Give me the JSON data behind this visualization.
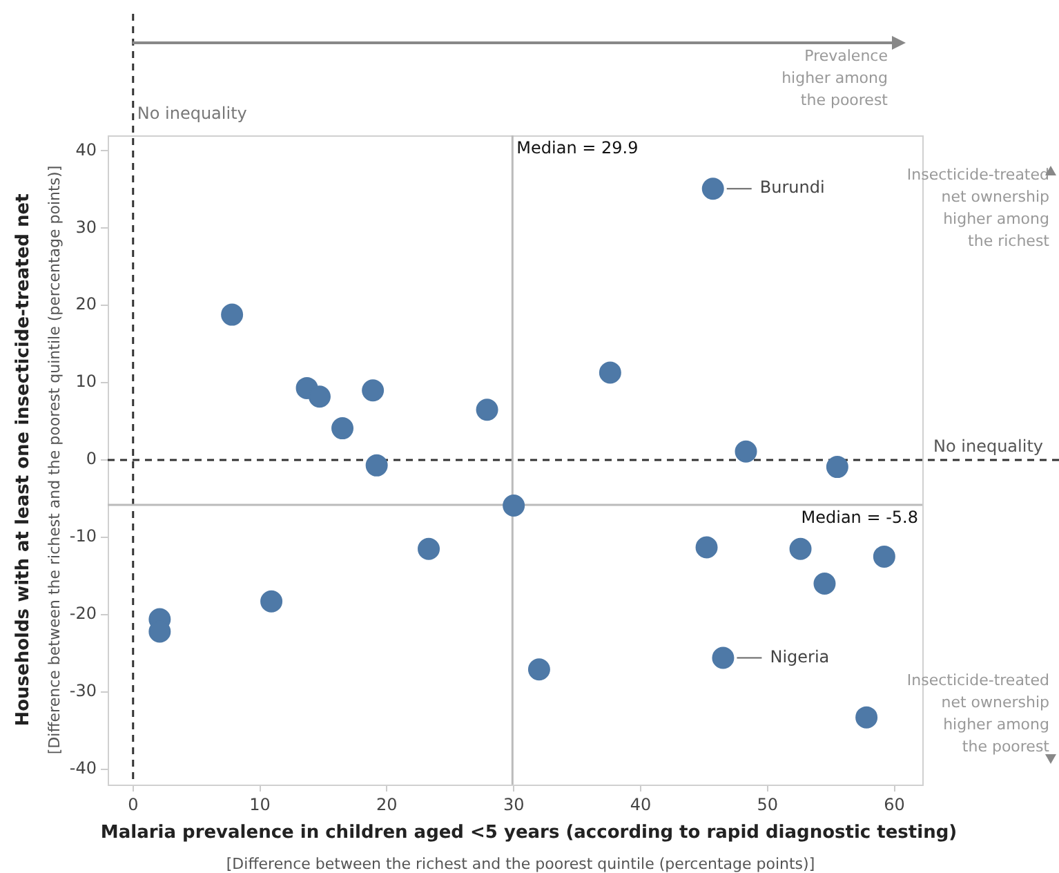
{
  "chart_data": {
    "type": "scatter",
    "xlabel": "Malaria prevalence in children aged <5 years (according to rapid diagnostic testing)",
    "ylabel": "Households with at least one insecticide-treated net",
    "x": [
      7.8,
      13.7,
      14.7,
      16.5,
      18.9,
      19.2,
      23.3,
      27.9,
      30.0,
      37.6,
      45.7,
      48.3,
      55.5,
      32.0,
      45.2,
      52.6,
      54.5,
      59.2,
      46.5,
      57.8,
      2.1,
      2.1,
      10.9
    ],
    "values": [
      18.8,
      9.3,
      8.2,
      4.1,
      9.0,
      -0.7,
      -11.5,
      6.5,
      -5.9,
      11.3,
      35.1,
      1.1,
      -0.9,
      -27.1,
      -11.3,
      -11.5,
      -16.0,
      -12.5,
      -25.6,
      -33.3,
      -20.6,
      -22.2,
      -18.3
    ],
    "color": "#4e79a7",
    "marker": "circle",
    "legend": false,
    "grid": false,
    "xlim": [
      -2,
      62.2
    ],
    "ylim": [
      -42,
      42
    ],
    "xticks": [
      0,
      10,
      20,
      30,
      40,
      50,
      60
    ],
    "yticks": [
      -40,
      -30,
      -20,
      -10,
      0,
      10,
      20,
      30,
      40
    ],
    "ref_lines": [
      {
        "axis": "x",
        "value": 0,
        "label": "No inequality",
        "line_style": "dashed",
        "color": "#333333"
      },
      {
        "axis": "y",
        "value": 0,
        "label": "No inequality",
        "line_style": "dashed",
        "color": "#333333"
      },
      {
        "axis": "x",
        "value": 29.9,
        "label": "Median = 29.9",
        "line_style": "solid",
        "color": "#bbbbbb"
      },
      {
        "axis": "y",
        "value": -5.8,
        "label": "Median = -5.8",
        "line_style": "solid",
        "color": "#bbbbbb"
      }
    ],
    "annotations": [
      "Prevalence higher among the poorest",
      "Insecticide-treated net ownership higher among the richest",
      "Insecticide-treated net ownership higher among the poorest",
      "[Difference between the richest and the poorest quintile (percentage points)]",
      "[Difference between the richest and the poorest quintile (percentage points)]",
      {
        "text": "Burundi",
        "x": 45.7,
        "y": 35.1
      },
      {
        "text": "Nigeria",
        "x": 46.5,
        "y": -25.6
      }
    ]
  }
}
